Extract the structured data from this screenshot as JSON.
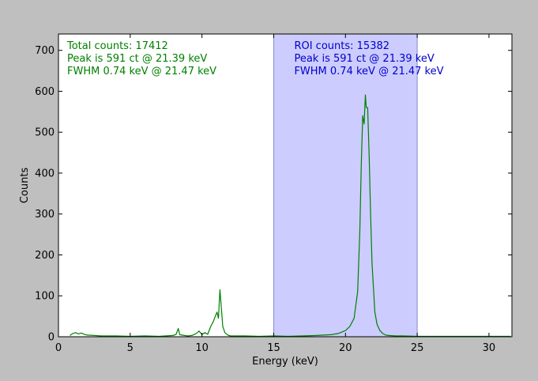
{
  "chart_data": {
    "type": "line",
    "xlabel": "Energy (keV)",
    "ylabel": "Counts",
    "xlim": [
      0,
      31.6
    ],
    "ylim": [
      0,
      740
    ],
    "xticks": [
      0,
      5,
      10,
      15,
      20,
      25,
      30
    ],
    "yticks": [
      0,
      100,
      200,
      300,
      400,
      500,
      600,
      700
    ],
    "grid": false,
    "roi": {
      "x0": 15,
      "x1": 25,
      "color": "#ccccff"
    },
    "series": [
      {
        "color": "#008000",
        "x": [
          0.8,
          1.0,
          1.2,
          1.4,
          1.6,
          1.8,
          2.0,
          2.5,
          3.0,
          4.0,
          5.0,
          6.0,
          7.0,
          8.0,
          8.2,
          8.35,
          8.45,
          8.6,
          8.8,
          9.0,
          9.3,
          9.6,
          9.8,
          10.0,
          10.2,
          10.4,
          10.6,
          10.8,
          10.95,
          11.05,
          11.15,
          11.25,
          11.35,
          11.45,
          11.6,
          11.8,
          12.0,
          13.0,
          14.0,
          15.0,
          16.0,
          17.0,
          18.0,
          19.0,
          19.5,
          20.0,
          20.3,
          20.6,
          20.85,
          21.0,
          21.1,
          21.2,
          21.3,
          21.39,
          21.45,
          21.55,
          21.65,
          21.75,
          21.85,
          21.95,
          22.05,
          22.2,
          22.4,
          22.6,
          22.8,
          23.0,
          23.5,
          24.0,
          25.0,
          27.0,
          29.0,
          31.5
        ],
        "y": [
          3,
          8,
          10,
          7,
          9,
          6,
          4,
          3,
          2,
          2,
          1,
          2,
          1,
          3,
          6,
          20,
          5,
          4,
          3,
          2,
          3,
          8,
          14,
          5,
          10,
          6,
          24,
          38,
          52,
          60,
          45,
          115,
          70,
          25,
          10,
          4,
          2,
          2,
          1,
          2,
          1,
          2,
          3,
          5,
          8,
          15,
          25,
          45,
          110,
          260,
          420,
          540,
          520,
          591,
          560,
          560,
          440,
          300,
          180,
          120,
          60,
          30,
          15,
          8,
          4,
          3,
          2,
          2,
          1,
          1,
          1,
          1
        ]
      }
    ],
    "annotations": [
      {
        "color": "#008000",
        "lines": [
          "Total counts: 17412",
          "Peak is 591 ct @ 21.39 keV",
          "FWHM 0.74 keV @ 21.47 keV"
        ]
      },
      {
        "color": "#0000cc",
        "lines": [
          "ROI counts: 15382",
          "Peak is 591 ct @ 21.39 keV",
          "FWHM 0.74 keV @ 21.47 keV"
        ]
      }
    ]
  }
}
